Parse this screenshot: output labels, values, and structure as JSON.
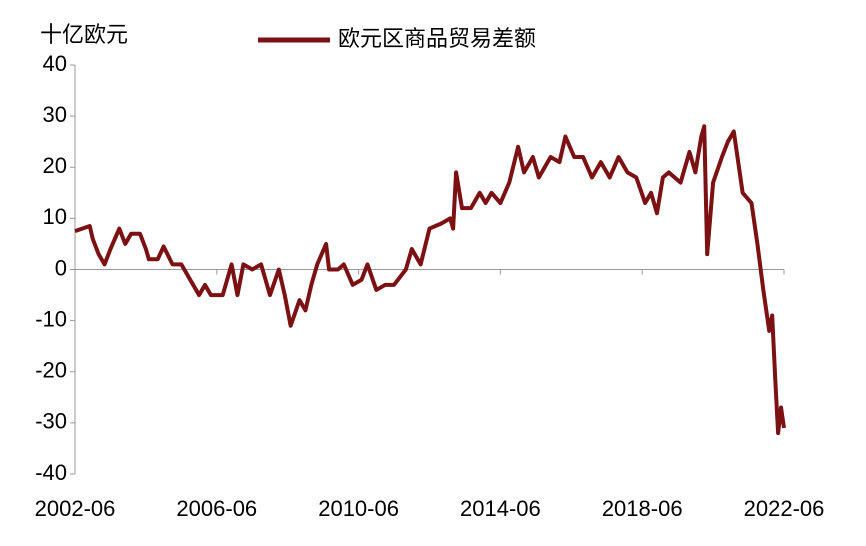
{
  "chart_data": {
    "type": "line",
    "y_label": "十亿欧元",
    "x": [
      "2002-06",
      "2002-11",
      "2002-12",
      "2003-02",
      "2003-04",
      "2003-06",
      "2003-09",
      "2003-11",
      "2004-01",
      "2004-04",
      "2004-06",
      "2004-07",
      "2004-10",
      "2004-12",
      "2005-03",
      "2005-06",
      "2005-09",
      "2005-12",
      "2006-02",
      "2006-04",
      "2006-08",
      "2006-11",
      "2007-01",
      "2007-03",
      "2007-06",
      "2007-09",
      "2007-12",
      "2008-03",
      "2008-05",
      "2008-07",
      "2008-10",
      "2008-12",
      "2009-02",
      "2009-04",
      "2009-07",
      "2009-08",
      "2009-11",
      "2010-01",
      "2010-04",
      "2010-07",
      "2010-09",
      "2010-12",
      "2011-03",
      "2011-06",
      "2011-10",
      "2011-12",
      "2012-03",
      "2012-06",
      "2012-10",
      "2013-01",
      "2013-02",
      "2013-03",
      "2013-05",
      "2013-08",
      "2013-11",
      "2014-01",
      "2014-03",
      "2014-06",
      "2014-09",
      "2014-12",
      "2015-02",
      "2015-05",
      "2015-07",
      "2015-11",
      "2016-02",
      "2016-04",
      "2016-07",
      "2016-10",
      "2017-01",
      "2017-04",
      "2017-07",
      "2017-10",
      "2018-01",
      "2018-04",
      "2018-07",
      "2018-09",
      "2018-11",
      "2019-01",
      "2019-03",
      "2019-07",
      "2019-10",
      "2019-12",
      "2020-02",
      "2020-03",
      "2020-04",
      "2020-06",
      "2020-09",
      "2020-11",
      "2021-01",
      "2021-04",
      "2021-07",
      "2021-09",
      "2021-11",
      "2022-01",
      "2022-02",
      "2022-03",
      "2022-04",
      "2022-05",
      "2022-06"
    ],
    "series": [
      {
        "name": "欧元区商品贸易差额",
        "color": "#7b1113",
        "values": [
          7.5,
          8.5,
          6,
          3,
          1,
          4,
          8,
          5,
          7,
          7,
          4,
          2,
          2,
          4.5,
          1,
          1,
          -2,
          -5,
          -3,
          -5,
          -5,
          1,
          -5,
          1,
          0,
          1,
          -5,
          0,
          -5,
          -11,
          -6,
          -8,
          -3,
          1,
          5,
          0,
          0,
          1,
          -3,
          -2,
          1,
          -4,
          -3,
          -3,
          0,
          4,
          1,
          8,
          9,
          10,
          8,
          19,
          12,
          12,
          15,
          13,
          15,
          13,
          17,
          24,
          19,
          22,
          18,
          22,
          21,
          26,
          22,
          22,
          18,
          21,
          18,
          22,
          19,
          18,
          13,
          15,
          11,
          18,
          19,
          17,
          23,
          19,
          26,
          28,
          3,
          17,
          22,
          25,
          27,
          15,
          13,
          5,
          -4,
          -12,
          -9,
          -21,
          -32,
          -27,
          -31
        ]
      }
    ],
    "xlim": [
      "2002-06",
      "2022-06"
    ],
    "xticks": [
      "2002-06",
      "2006-06",
      "2010-06",
      "2014-06",
      "2018-06",
      "2022-06"
    ],
    "ylim": [
      -40,
      40
    ],
    "yticks": [
      -40,
      -30,
      -20,
      -10,
      0,
      10,
      20,
      30,
      40
    ]
  }
}
